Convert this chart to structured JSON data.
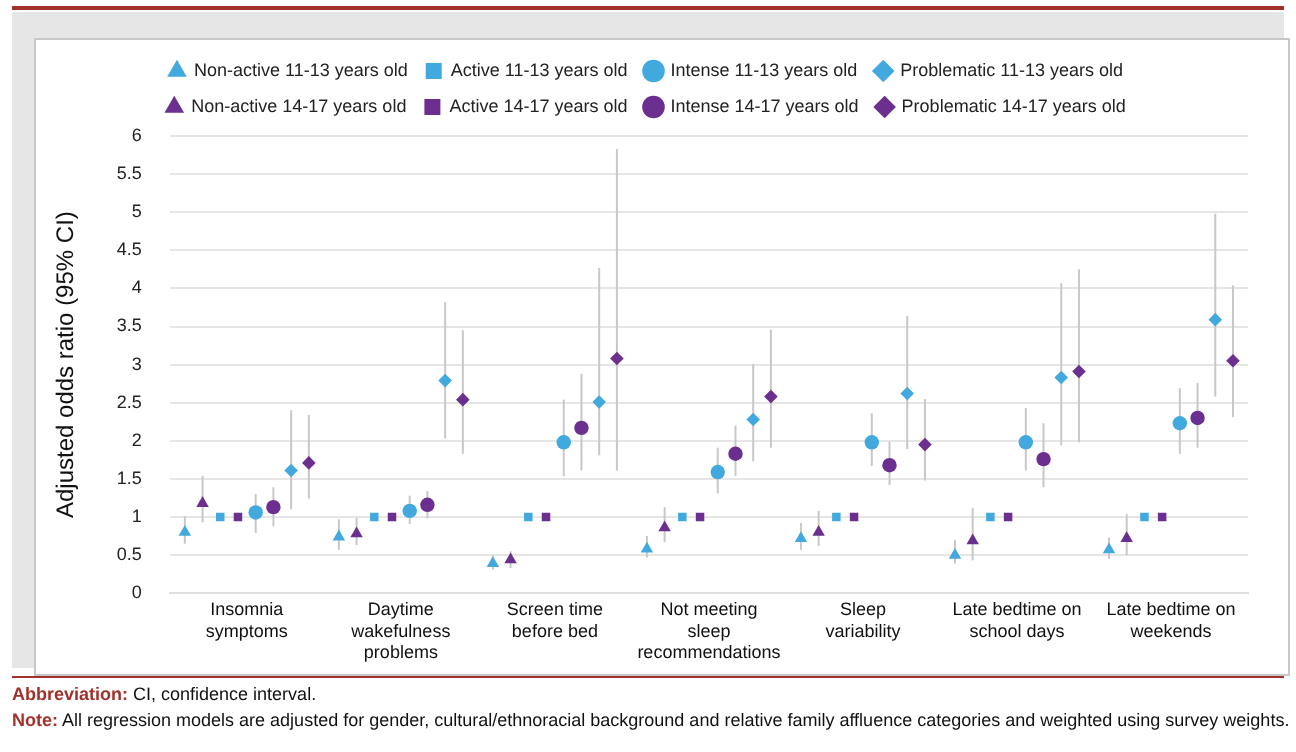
{
  "chart_data": {
    "type": "scatter",
    "ylabel": "Adjusted odds ratio (95% CI)",
    "categories": [
      "Insomnia symptoms",
      "Daytime wakefulness problems",
      "Screen time before bed",
      "Not meeting sleep recommendations",
      "Sleep variability",
      "Late bedtime on school days",
      "Late bedtime on weekends"
    ],
    "series": [
      {
        "name": "Non-active 11-13 years old",
        "color": "#41a9dd",
        "marker": "triangle",
        "values": [
          0.8,
          0.74,
          0.39,
          0.58,
          0.72,
          0.5,
          0.57
        ],
        "errors": [
          [
            0.65,
            1.01
          ],
          [
            0.57,
            0.97
          ],
          [
            0.31,
            0.5
          ],
          [
            0.47,
            0.75
          ],
          [
            0.57,
            0.92
          ],
          [
            0.39,
            0.7
          ],
          [
            0.45,
            0.73
          ]
        ]
      },
      {
        "name": "Active 11-13 years old",
        "color": "#41a9dd",
        "marker": "square",
        "values": [
          1,
          1,
          1,
          1,
          1,
          1,
          1
        ]
      },
      {
        "name": "Intense 11-13 years old",
        "color": "#41a9dd",
        "marker": "circle",
        "values": [
          1.06,
          1.08,
          1.98,
          1.59,
          1.98,
          1.98,
          2.23
        ],
        "errors": [
          [
            0.79,
            1.3
          ],
          [
            0.91,
            1.28
          ],
          [
            1.54,
            2.54
          ],
          [
            1.31,
            1.91
          ],
          [
            1.67,
            2.36
          ],
          [
            1.61,
            2.43
          ],
          [
            1.83,
            2.69
          ]
        ]
      },
      {
        "name": "Problematic 11-13 years old",
        "color": "#41a9dd",
        "marker": "diamond",
        "values": [
          1.61,
          2.79,
          2.51,
          2.28,
          2.62,
          2.83,
          3.59
        ],
        "errors": [
          [
            1.1,
            2.4
          ],
          [
            2.03,
            3.82
          ],
          [
            1.81,
            4.27
          ],
          [
            1.73,
            3.01
          ],
          [
            1.89,
            3.64
          ],
          [
            1.94,
            4.07
          ],
          [
            2.58,
            4.98
          ]
        ]
      },
      {
        "name": "Non-active 14-17 years old",
        "color": "#6a2f8f",
        "marker": "triangle",
        "values": [
          1.18,
          0.78,
          0.44,
          0.86,
          0.8,
          0.69,
          0.72
        ],
        "errors": [
          [
            0.93,
            1.54
          ],
          [
            0.63,
            0.99
          ],
          [
            0.33,
            0.55
          ],
          [
            0.67,
            1.13
          ],
          [
            0.62,
            1.08
          ],
          [
            0.43,
            1.12
          ],
          [
            0.5,
            1.04
          ]
        ]
      },
      {
        "name": "Active 14-17 years old",
        "color": "#6a2f8f",
        "marker": "square",
        "values": [
          1,
          1,
          1,
          1,
          1,
          1,
          1
        ]
      },
      {
        "name": "Intense 14-17 years old",
        "color": "#6a2f8f",
        "marker": "circle",
        "values": [
          1.13,
          1.16,
          2.17,
          1.83,
          1.68,
          1.76,
          2.3
        ],
        "errors": [
          [
            0.88,
            1.39
          ],
          [
            0.98,
            1.34
          ],
          [
            1.61,
            2.88
          ],
          [
            1.54,
            2.2
          ],
          [
            1.42,
            1.99
          ],
          [
            1.39,
            2.23
          ],
          [
            1.91,
            2.76
          ]
        ]
      },
      {
        "name": "Problematic 14-17 years old",
        "color": "#6a2f8f",
        "marker": "diamond",
        "values": [
          1.71,
          2.54,
          3.08,
          2.58,
          1.95,
          2.91,
          3.05
        ],
        "errors": [
          [
            1.24,
            2.34
          ],
          [
            1.83,
            3.45
          ],
          [
            1.61,
            5.83
          ],
          [
            1.91,
            3.46
          ],
          [
            1.48,
            2.55
          ],
          [
            1.98,
            4.25
          ],
          [
            2.31,
            4.04
          ]
        ]
      }
    ],
    "ylim": [
      0,
      6
    ],
    "yticks": [
      0,
      0.5,
      1,
      1.5,
      2,
      2.5,
      3,
      3.5,
      4,
      4.5,
      5,
      5.5,
      6
    ],
    "grid": "y",
    "legend": "top",
    "annotations": [
      "Abbreviation: CI, confidence interval.",
      "Note: All regression models are adjusted for gender, cultural/ethnoracial background and relative family affluence categories and weighted using survey weights."
    ]
  }
}
